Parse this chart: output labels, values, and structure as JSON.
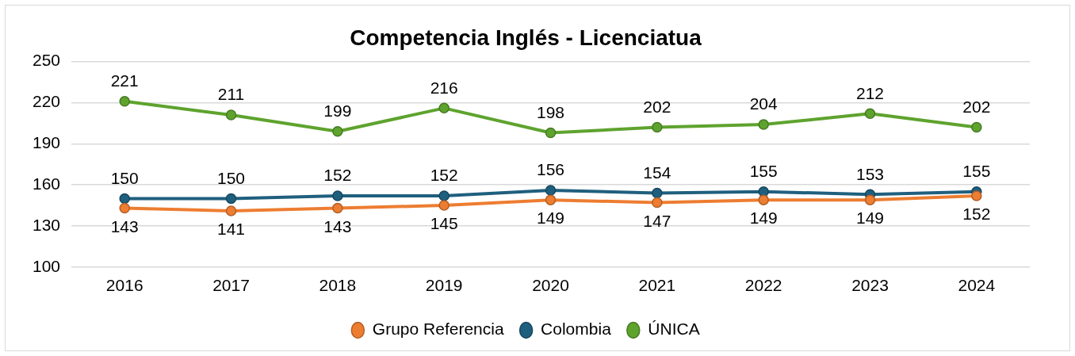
{
  "chart_data": {
    "type": "line",
    "title": "Competencia Inglés - Licenciatua",
    "categories": [
      "2016",
      "2017",
      "2018",
      "2019",
      "2020",
      "2021",
      "2022",
      "2023",
      "2024"
    ],
    "series": [
      {
        "name": "Grupo Referencia",
        "color": "#ed7d31",
        "values": [
          143,
          141,
          143,
          145,
          149,
          147,
          149,
          149,
          152
        ]
      },
      {
        "name": "Colombia",
        "color": "#1f5f7e",
        "values": [
          150,
          150,
          152,
          152,
          156,
          154,
          155,
          153,
          155
        ]
      },
      {
        "name": "ÚNICA",
        "color": "#5ea32e",
        "values": [
          221,
          211,
          199,
          216,
          198,
          202,
          204,
          212,
          202
        ]
      }
    ],
    "ylim": [
      100,
      250
    ],
    "yticks": [
      100,
      130,
      160,
      190,
      220,
      250
    ],
    "grid": "y",
    "legend": "bottom",
    "marker": "circle",
    "line_style": "solid",
    "data_labels": true
  }
}
